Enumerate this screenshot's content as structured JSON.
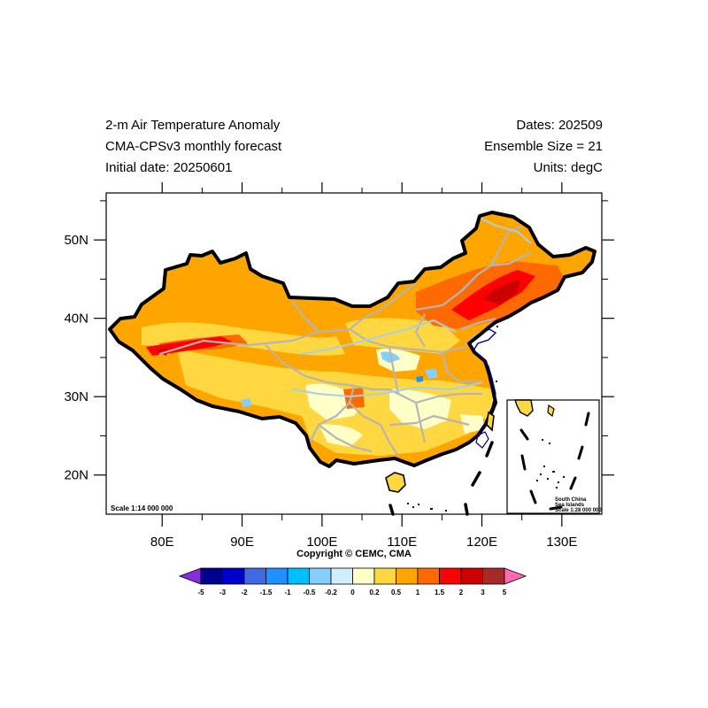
{
  "header": {
    "title_line1": "2-m Air Temperature Anomaly",
    "title_line2": "CMA-CPSv3 monthly forecast",
    "title_line3": "Initial date: 20250601",
    "dates": "Dates: 202509",
    "ensemble": "Ensemble Size = 21",
    "units": "Units: degC"
  },
  "map": {
    "lon_range": [
      73,
      135
    ],
    "lat_range": [
      15,
      56
    ],
    "lat_labels": [
      "20N",
      "30N",
      "40N",
      "50N"
    ],
    "lat_values": [
      20,
      30,
      40,
      50
    ],
    "lon_labels": [
      "80E",
      "90E",
      "100E",
      "110E",
      "120E",
      "130E"
    ],
    "lon_values": [
      80,
      90,
      100,
      110,
      120,
      130
    ],
    "scale_text": "Scale 1:14 000 000",
    "inset": {
      "line1": "South China",
      "line2": "Sea Islands",
      "line3": "Scale 1:28 000 000"
    }
  },
  "copyright": "Copyright © CEMC, CMA",
  "colorbar": {
    "labels": [
      "-5",
      "-3",
      "-2",
      "-1.5",
      "-1",
      "-0.5",
      "-0.2",
      "0",
      "0.2",
      "0.5",
      "1",
      "1.5",
      "2",
      "3",
      "5"
    ],
    "colors": [
      "#8a2be2",
      "#00008b",
      "#0000cd",
      "#4169e1",
      "#1e90ff",
      "#00bfff",
      "#87cefa",
      "#cfeeff",
      "#ffffc8",
      "#ffd740",
      "#ffa500",
      "#ff6a00",
      "#ff0000",
      "#cd0000",
      "#a52a2a",
      "#ff69b4"
    ]
  }
}
